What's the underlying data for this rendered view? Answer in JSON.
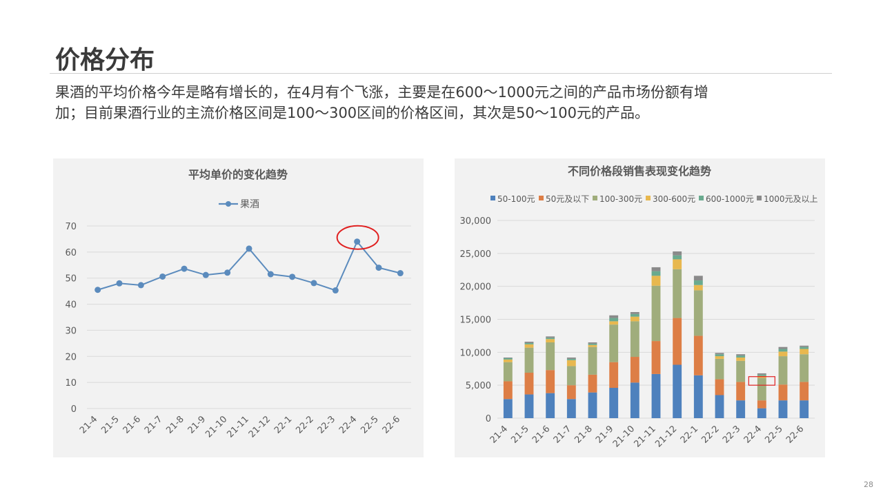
{
  "slide": {
    "title": "价格分布",
    "description_line1": "果酒的平均价格今年是略有增长的，在4月有个飞涨，主要是在600～1000元之间的产品市场份额有增",
    "description_line2": "加；目前果酒行业的主流价格区间是100～300区间的价格区间，其次是50～100元的产品。",
    "page_number": "28"
  },
  "chart_data": [
    {
      "type": "line",
      "title": "平均单价的变化趋势",
      "categories": [
        "21-4",
        "21-5",
        "21-6",
        "21-7",
        "21-8",
        "21-9",
        "21-10",
        "21-11",
        "21-12",
        "22-1",
        "22-2",
        "22-3",
        "22-4",
        "22-5",
        "22-6"
      ],
      "series": [
        {
          "name": "果酒",
          "values": [
            45.5,
            48,
            47.3,
            50.6,
            53.6,
            51.2,
            52.1,
            61.3,
            51.5,
            50.5,
            48.1,
            45.3,
            64,
            54,
            51.9
          ],
          "color": "#5b8bbd"
        }
      ],
      "ylim": [
        0,
        70
      ],
      "yticks": [
        0,
        10,
        20,
        30,
        40,
        50,
        60,
        70
      ],
      "legend": "top-center",
      "grid": true,
      "highlight": {
        "category": "22-4",
        "shape": "ellipse",
        "color": "#e02020"
      }
    },
    {
      "type": "bar",
      "stacked": true,
      "title": "不同价格段销售表现变化趋势",
      "categories": [
        "21-4",
        "21-5",
        "21-6",
        "21-7",
        "21-8",
        "21-9",
        "21-10",
        "21-11",
        "21-12",
        "22-1",
        "22-2",
        "22-3",
        "22-4",
        "22-5",
        "22-6"
      ],
      "series": [
        {
          "name": "50-100元",
          "color": "#4e81bd",
          "values": [
            2900,
            3600,
            3800,
            2900,
            3900,
            4600,
            5400,
            6700,
            8100,
            6500,
            3500,
            2700,
            1500,
            2700,
            2700
          ]
        },
        {
          "name": "50元及以下",
          "color": "#dd7e46",
          "values": [
            2700,
            3300,
            3500,
            2100,
            2700,
            3900,
            3900,
            5000,
            7100,
            6000,
            2400,
            2800,
            1200,
            2400,
            2800
          ]
        },
        {
          "name": "100-300元",
          "color": "#a0ad7c",
          "values": [
            2900,
            3800,
            4200,
            2900,
            4200,
            5700,
            5400,
            8400,
            7400,
            6900,
            3100,
            3200,
            3400,
            4300,
            4200
          ]
        },
        {
          "name": "300-600元",
          "color": "#e8b84f",
          "values": [
            400,
            500,
            500,
            900,
            300,
            500,
            700,
            1500,
            1500,
            800,
            400,
            500,
            300,
            700,
            800
          ]
        },
        {
          "name": "600-1000元",
          "color": "#6aaa8f",
          "values": [
            200,
            200,
            200,
            200,
            200,
            500,
            400,
            700,
            600,
            700,
            300,
            300,
            200,
            400,
            300
          ]
        },
        {
          "name": "1000元及以上",
          "color": "#8a8a8a",
          "values": [
            100,
            200,
            200,
            200,
            200,
            400,
            300,
            600,
            600,
            700,
            200,
            200,
            200,
            300,
            200
          ]
        }
      ],
      "ylim": [
        0,
        30000
      ],
      "ytick_labels": [
        "0",
        "5,000",
        "10,000",
        "15,000",
        "20,000",
        "25,000",
        "30,000"
      ],
      "legend": "top",
      "grid": true,
      "highlight": {
        "category": "22-4",
        "shape": "rectangle",
        "color": "#e02020",
        "y_range": [
          5000,
          6300
        ]
      }
    }
  ]
}
